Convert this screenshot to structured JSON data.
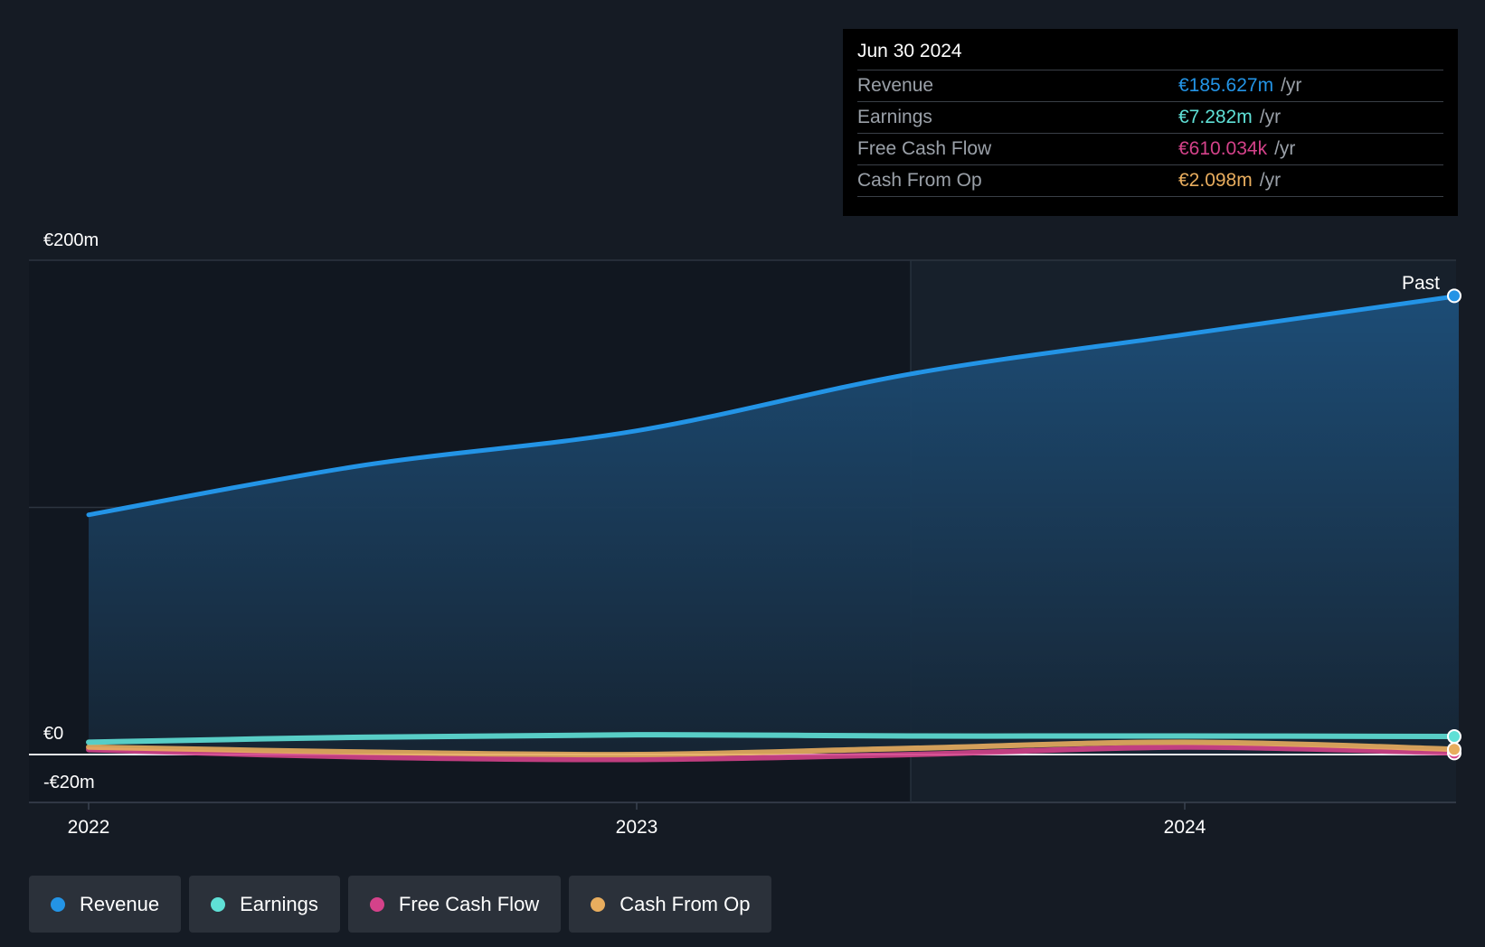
{
  "colors": {
    "revenue": "#2394e6",
    "earnings": "#5fe0d6",
    "free_cash_flow": "#d4428a",
    "cash_from_op": "#e8ad5e",
    "background": "#151b24"
  },
  "tooltip": {
    "date": "Jun 30 2024",
    "rows": [
      {
        "label": "Revenue",
        "value": "€185.627m",
        "unit": "/yr"
      },
      {
        "label": "Earnings",
        "value": "€7.282m",
        "unit": "/yr"
      },
      {
        "label": "Free Cash Flow",
        "value": "€610.034k",
        "unit": "/yr"
      },
      {
        "label": "Cash From Op",
        "value": "€2.098m",
        "unit": "/yr"
      }
    ]
  },
  "legend": [
    "Revenue",
    "Earnings",
    "Free Cash Flow",
    "Cash From Op"
  ],
  "chart_data": {
    "type": "line",
    "past_label": "Past",
    "y_tick_labels": [
      "€200m",
      "€0",
      "-€20m"
    ],
    "x_tick_labels": [
      "2022",
      "2023",
      "2024"
    ],
    "ylim": [
      -20,
      200
    ],
    "xlim": [
      2021.9,
      2024.6
    ],
    "grid": true,
    "legend_position": "bottom",
    "series": [
      {
        "name": "Revenue",
        "x": [
          2022.0,
          2022.5,
          2023.0,
          2023.5,
          2024.0,
          2024.5
        ],
        "values": [
          97,
          117,
          131,
          154,
          170,
          185.6
        ]
      },
      {
        "name": "Earnings",
        "x": [
          2022.0,
          2022.5,
          2023.0,
          2023.5,
          2024.0,
          2024.5
        ],
        "values": [
          5,
          7,
          8,
          7.5,
          7.5,
          7.3
        ]
      },
      {
        "name": "Free Cash Flow",
        "x": [
          2022.0,
          2022.5,
          2023.0,
          2023.5,
          2024.0,
          2024.5
        ],
        "values": [
          2,
          -1,
          -2,
          0,
          3,
          0.6
        ]
      },
      {
        "name": "Cash From Op",
        "x": [
          2022.0,
          2022.5,
          2023.0,
          2023.5,
          2024.0,
          2024.5
        ],
        "values": [
          3,
          1,
          0,
          2.5,
          5,
          2.1
        ]
      }
    ]
  }
}
